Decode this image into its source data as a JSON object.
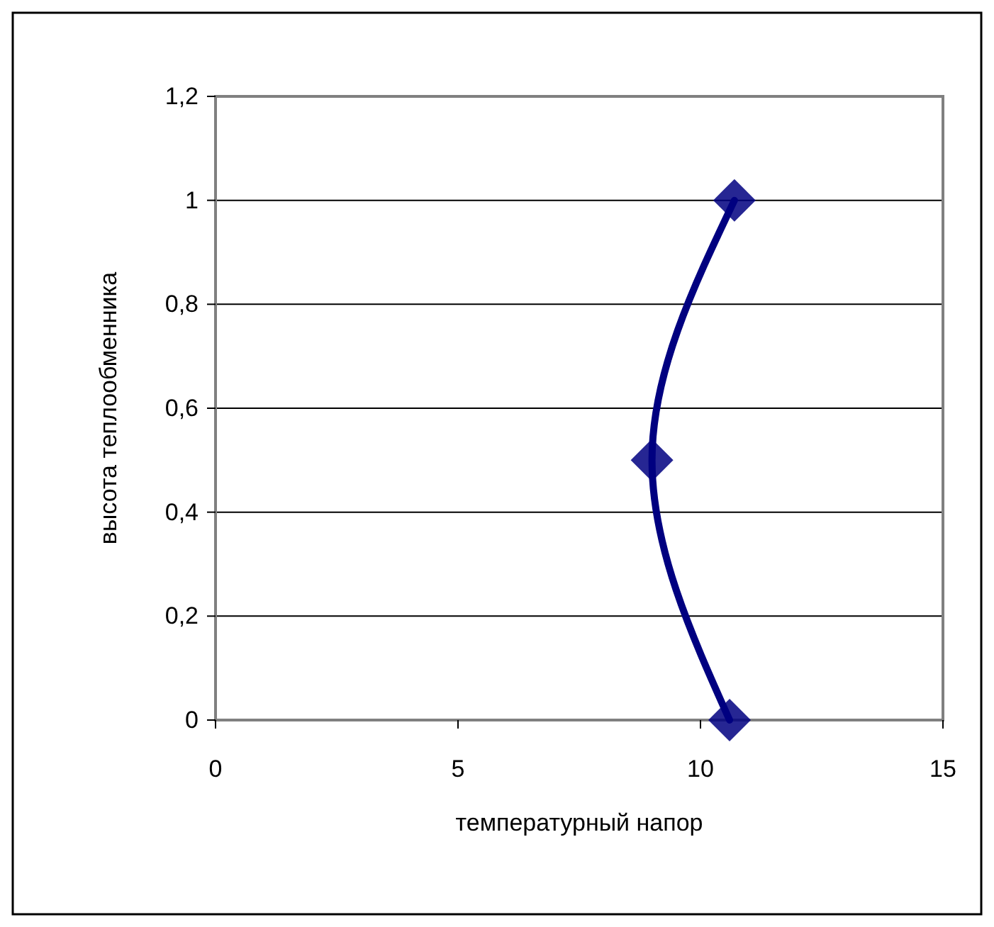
{
  "chart_data": {
    "type": "line",
    "xlabel": "температурный напор",
    "ylabel": "высота теплообменника",
    "x": [
      10.6,
      9.0,
      10.7
    ],
    "series": [
      {
        "color": "#000080",
        "values": [
          0,
          0.5,
          1
        ]
      }
    ],
    "xlim": [
      0,
      15
    ],
    "xticks": [
      0,
      5,
      10,
      15
    ],
    "ylim": [
      0,
      1.2
    ],
    "yticks": [
      0,
      {
        "value": 0.2,
        "label": "0,2"
      },
      {
        "value": 0.4,
        "label": "0,4"
      },
      {
        "value": 0.6,
        "label": "0,6"
      },
      {
        "value": 0.8,
        "label": "0,8"
      },
      1,
      {
        "value": 1.2,
        "label": "1,2"
      }
    ],
    "grid": "y",
    "marker": "diamond",
    "line_style": "solid"
  }
}
